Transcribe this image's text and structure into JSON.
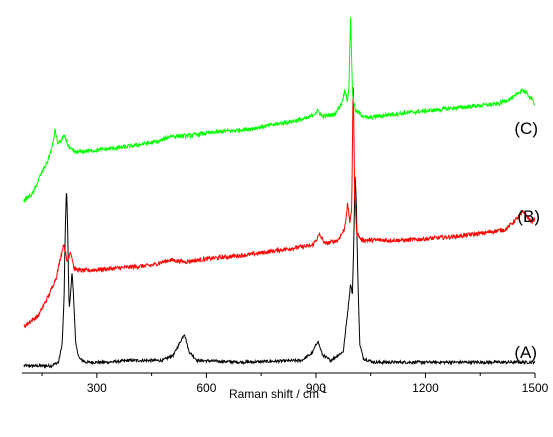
{
  "chart_data": {
    "type": "line",
    "title": "",
    "xlabel": {
      "text": "Raman shift / cm",
      "superscript": "-1"
    },
    "ylabel": "",
    "xlim": [
      95,
      1500
    ],
    "xticks": [
      300,
      600,
      900,
      1200,
      1500
    ],
    "xtick_labels": [
      "300",
      "600",
      "900",
      "1200",
      "1500"
    ],
    "grid": false,
    "legend": "none",
    "series": [
      {
        "label": "(A)",
        "color": "#000000",
        "baseline": 0.02,
        "noise": 0.004,
        "points": [
          [
            100,
            0.02
          ],
          [
            175,
            0.02
          ],
          [
            195,
            0.03
          ],
          [
            205,
            0.08
          ],
          [
            210,
            0.2
          ],
          [
            214,
            0.42
          ],
          [
            217,
            0.52
          ],
          [
            220,
            0.4
          ],
          [
            224,
            0.18
          ],
          [
            228,
            0.22
          ],
          [
            232,
            0.28
          ],
          [
            236,
            0.22
          ],
          [
            242,
            0.08
          ],
          [
            252,
            0.04
          ],
          [
            270,
            0.03
          ],
          [
            330,
            0.03
          ],
          [
            390,
            0.035
          ],
          [
            480,
            0.035
          ],
          [
            510,
            0.05
          ],
          [
            530,
            0.09
          ],
          [
            540,
            0.11
          ],
          [
            552,
            0.06
          ],
          [
            575,
            0.035
          ],
          [
            700,
            0.03
          ],
          [
            860,
            0.035
          ],
          [
            890,
            0.055
          ],
          [
            905,
            0.09
          ],
          [
            918,
            0.05
          ],
          [
            940,
            0.035
          ],
          [
            975,
            0.06
          ],
          [
            988,
            0.18
          ],
          [
            995,
            0.25
          ],
          [
            1000,
            0.22
          ],
          [
            1004,
            0.38
          ],
          [
            1007,
            0.55
          ],
          [
            1010,
            0.5
          ],
          [
            1014,
            0.3
          ],
          [
            1020,
            0.08
          ],
          [
            1030,
            0.04
          ],
          [
            1060,
            0.03
          ],
          [
            1500,
            0.03
          ]
        ]
      },
      {
        "label": "(B)",
        "color": "#ff0000",
        "baseline": 0.25,
        "noise": 0.006,
        "points": [
          [
            100,
            0.13
          ],
          [
            140,
            0.16
          ],
          [
            170,
            0.22
          ],
          [
            190,
            0.27
          ],
          [
            200,
            0.32
          ],
          [
            210,
            0.36
          ],
          [
            218,
            0.31
          ],
          [
            228,
            0.34
          ],
          [
            238,
            0.29
          ],
          [
            260,
            0.285
          ],
          [
            330,
            0.29
          ],
          [
            450,
            0.3
          ],
          [
            500,
            0.315
          ],
          [
            540,
            0.31
          ],
          [
            620,
            0.32
          ],
          [
            720,
            0.33
          ],
          [
            850,
            0.35
          ],
          [
            890,
            0.355
          ],
          [
            910,
            0.385
          ],
          [
            925,
            0.36
          ],
          [
            960,
            0.37
          ],
          [
            978,
            0.4
          ],
          [
            987,
            0.47
          ],
          [
            993,
            0.42
          ],
          [
            998,
            0.45
          ],
          [
            1002,
            0.83
          ],
          [
            1006,
            0.5
          ],
          [
            1012,
            0.39
          ],
          [
            1025,
            0.37
          ],
          [
            1060,
            0.37
          ],
          [
            1150,
            0.37
          ],
          [
            1280,
            0.38
          ],
          [
            1360,
            0.39
          ],
          [
            1420,
            0.4
          ],
          [
            1450,
            0.43
          ],
          [
            1468,
            0.45
          ],
          [
            1490,
            0.42
          ],
          [
            1500,
            0.43
          ]
        ]
      },
      {
        "label": "(C)",
        "color": "#00ff00",
        "baseline": 0.58,
        "noise": 0.006,
        "points": [
          [
            100,
            0.48
          ],
          [
            125,
            0.5
          ],
          [
            145,
            0.55
          ],
          [
            165,
            0.59
          ],
          [
            178,
            0.63
          ],
          [
            186,
            0.68
          ],
          [
            192,
            0.64
          ],
          [
            200,
            0.645
          ],
          [
            212,
            0.66
          ],
          [
            225,
            0.625
          ],
          [
            240,
            0.615
          ],
          [
            290,
            0.62
          ],
          [
            380,
            0.63
          ],
          [
            470,
            0.645
          ],
          [
            500,
            0.66
          ],
          [
            540,
            0.66
          ],
          [
            620,
            0.67
          ],
          [
            720,
            0.68
          ],
          [
            830,
            0.7
          ],
          [
            880,
            0.71
          ],
          [
            905,
            0.73
          ],
          [
            918,
            0.715
          ],
          [
            950,
            0.72
          ],
          [
            970,
            0.75
          ],
          [
            980,
            0.79
          ],
          [
            986,
            0.76
          ],
          [
            990,
            0.78
          ],
          [
            995,
            1.0
          ],
          [
            1000,
            0.78
          ],
          [
            1008,
            0.73
          ],
          [
            1040,
            0.71
          ],
          [
            1100,
            0.72
          ],
          [
            1200,
            0.73
          ],
          [
            1300,
            0.74
          ],
          [
            1400,
            0.75
          ],
          [
            1445,
            0.77
          ],
          [
            1465,
            0.79
          ],
          [
            1485,
            0.77
          ],
          [
            1500,
            0.75
          ]
        ]
      }
    ]
  }
}
